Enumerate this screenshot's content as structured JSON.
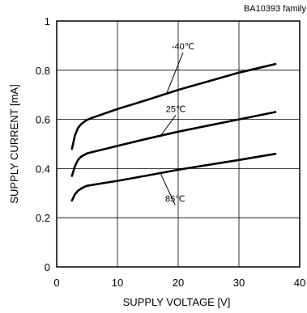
{
  "chart_data": {
    "type": "line",
    "title": "",
    "corner_label": "BA10393 family",
    "xlabel": "SUPPLY VOLTAGE [V]",
    "ylabel": "SUPPLY CURRENT [mA]",
    "xlim": [
      0,
      40
    ],
    "ylim": [
      0,
      1
    ],
    "x_ticks": [
      0,
      10,
      20,
      30,
      40
    ],
    "x_tick_labels": [
      "0",
      "10",
      "20",
      "30",
      "40"
    ],
    "y_ticks": [
      0,
      0.2,
      0.4,
      0.6,
      0.8,
      1
    ],
    "y_tick_labels": [
      "0",
      "0.2",
      "0.4",
      "0.6",
      "0.8",
      "1"
    ],
    "grid": true,
    "series": [
      {
        "name": "-40℃",
        "color": "#000000",
        "x": [
          2.5,
          3,
          3.5,
          4,
          4.5,
          5,
          6,
          8,
          10,
          15,
          20,
          25,
          30,
          36
        ],
        "y": [
          0.48,
          0.535,
          0.565,
          0.58,
          0.59,
          0.598,
          0.608,
          0.625,
          0.642,
          0.68,
          0.72,
          0.755,
          0.79,
          0.825
        ]
      },
      {
        "name": "25℃",
        "color": "#000000",
        "x": [
          2.5,
          3,
          3.5,
          4,
          4.5,
          5,
          6,
          8,
          10,
          15,
          20,
          25,
          30,
          36
        ],
        "y": [
          0.37,
          0.41,
          0.435,
          0.448,
          0.455,
          0.462,
          0.468,
          0.48,
          0.492,
          0.522,
          0.55,
          0.575,
          0.6,
          0.63
        ]
      },
      {
        "name": "85℃",
        "color": "#000000",
        "x": [
          2.5,
          3,
          3.5,
          4,
          4.5,
          5,
          6,
          8,
          10,
          15,
          20,
          25,
          30,
          36
        ],
        "y": [
          0.27,
          0.295,
          0.31,
          0.318,
          0.325,
          0.33,
          0.334,
          0.342,
          0.35,
          0.372,
          0.395,
          0.415,
          0.435,
          0.46
        ]
      }
    ],
    "annotations": [
      {
        "text": "-40℃",
        "label_x": 20.8,
        "label_y": 0.885,
        "point_x": 18,
        "point_y": 0.7
      },
      {
        "text": "25℃",
        "label_x": 19.6,
        "label_y": 0.63,
        "point_x": 17,
        "point_y": 0.53
      },
      {
        "text": "85℃",
        "label_x": 19.5,
        "label_y": 0.265,
        "point_x": 17,
        "point_y": 0.385
      }
    ]
  }
}
